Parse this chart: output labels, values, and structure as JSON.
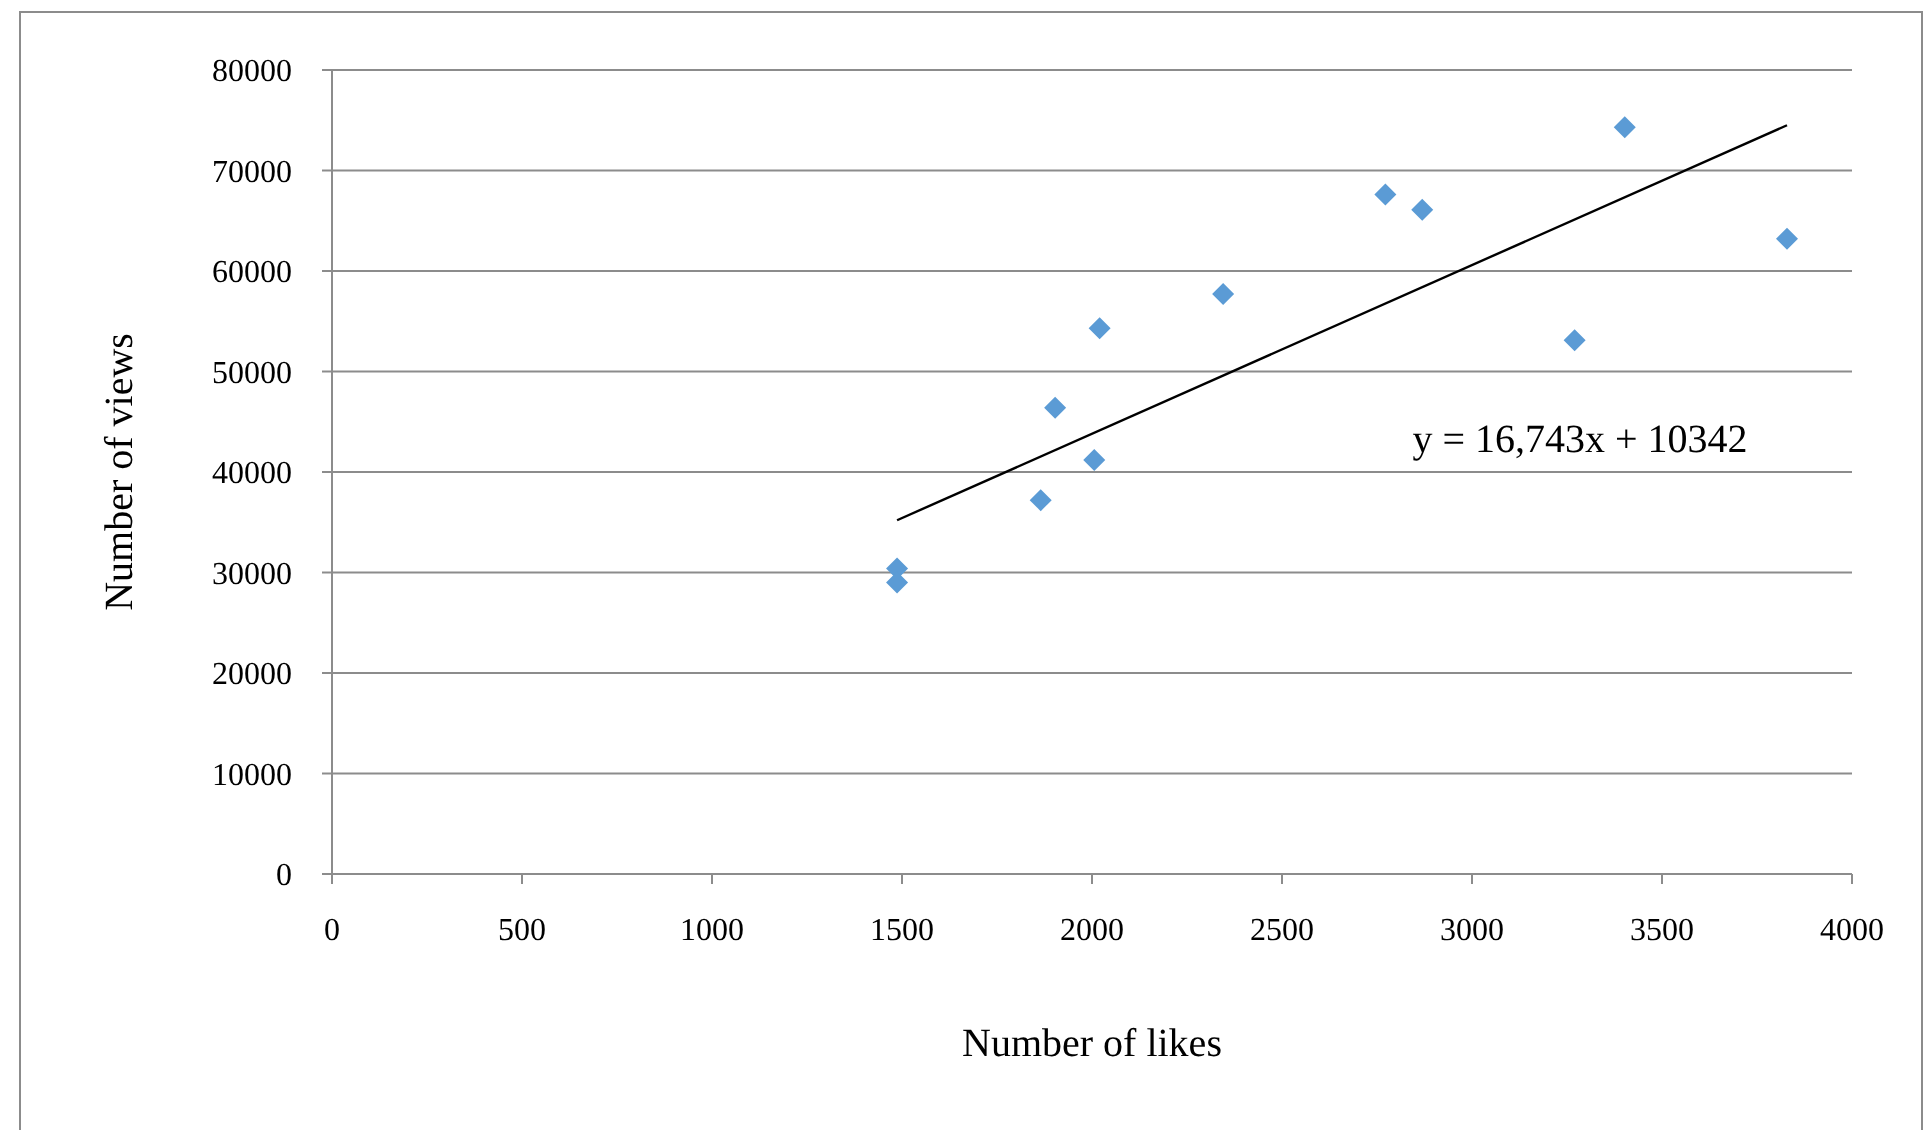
{
  "chart_data": {
    "type": "scatter",
    "xlabel": "Number of likes",
    "ylabel": "Number of views",
    "xlim": [
      0,
      4000
    ],
    "xticks": [
      0,
      500,
      1000,
      1500,
      2000,
      2500,
      3000,
      3500,
      4000
    ],
    "ylim": [
      0,
      80000
    ],
    "yticks": [
      0,
      10000,
      20000,
      30000,
      40000,
      50000,
      60000,
      70000,
      80000
    ],
    "grid": "y",
    "series": [
      {
        "color": "#5b9bd5",
        "marker": "diamond",
        "x": [
          1487,
          1487,
          1865,
          2006,
          1903,
          2020,
          2345,
          2772,
          2869,
          3270,
          3829,
          3402
        ],
        "values": [
          30400,
          29000,
          37200,
          41200,
          46400,
          54300,
          57700,
          67600,
          66100,
          53100,
          63200,
          74300
        ]
      },
      {
        "type": "line",
        "marker": "none",
        "color": "#000000",
        "x": [
          1487,
          3829
        ],
        "values": [
          35200,
          74500
        ]
      }
    ],
    "annotations": [
      "y = 16,743x + 10342"
    ]
  }
}
